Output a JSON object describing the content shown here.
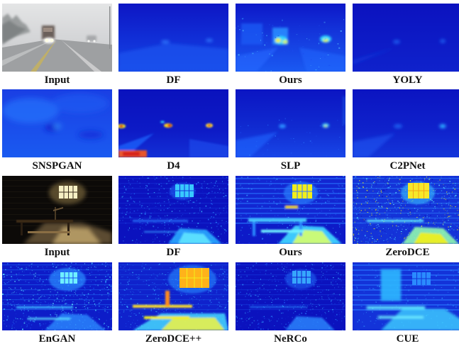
{
  "rows": [
    {
      "scene": "fog",
      "items": [
        {
          "label": "Input",
          "kind": "fog-input"
        },
        {
          "label": "DF",
          "kind": "fog-dark"
        },
        {
          "label": "Ours",
          "kind": "fog-ours"
        },
        {
          "label": "YOLY",
          "kind": "fog-yoly"
        }
      ]
    },
    {
      "scene": "fog",
      "items": [
        {
          "label": "SNSPGAN",
          "kind": "fog-snsp"
        },
        {
          "label": "D4",
          "kind": "fog-d4"
        },
        {
          "label": "SLP",
          "kind": "fog-slp"
        },
        {
          "label": "C2PNet",
          "kind": "fog-c2p"
        }
      ]
    },
    {
      "scene": "room",
      "items": [
        {
          "label": "Input",
          "kind": "room-input"
        },
        {
          "label": "DF",
          "kind": "room-df"
        },
        {
          "label": "Ours",
          "kind": "room-ours"
        },
        {
          "label": "ZeroDCE",
          "kind": "room-zerodce"
        }
      ]
    },
    {
      "scene": "room",
      "items": [
        {
          "label": "EnGAN",
          "kind": "room-engan"
        },
        {
          "label": "ZeroDCE++",
          "kind": "room-zerodcepp"
        },
        {
          "label": "NeRCo",
          "kind": "room-nerco"
        },
        {
          "label": "CUE",
          "kind": "room-cue"
        }
      ]
    }
  ],
  "colors": {
    "map_low": "#0a14c8",
    "map_mid": "#1e6bff",
    "map_cyan": "#2fd8ff",
    "map_yellow": "#f2ef1a",
    "map_red": "#d8231c",
    "fog_sky": "#d9dadb",
    "room_dark": "#0c0a08"
  }
}
